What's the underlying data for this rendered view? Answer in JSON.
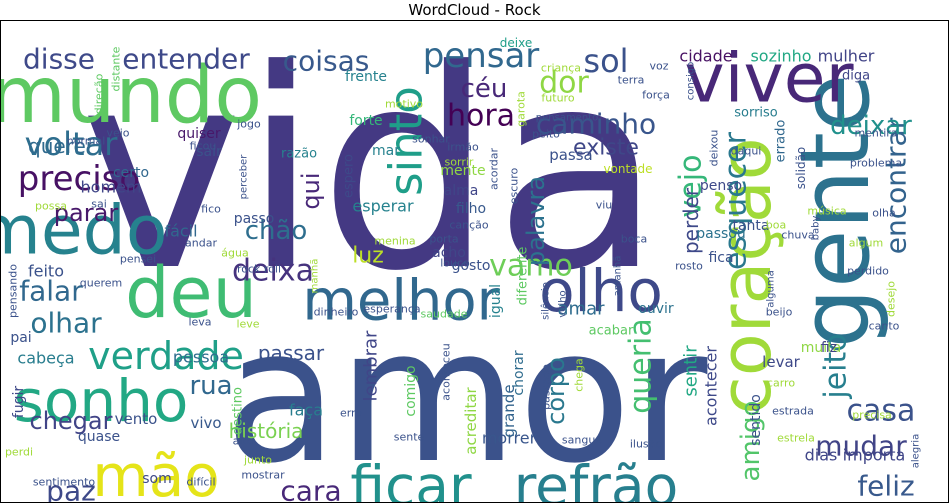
{
  "chart_data": {
    "type": "wordcloud",
    "title": "WordCloud - Rock",
    "words": [
      {
        "text": "vida",
        "weight": 1.0
      },
      {
        "text": "amor",
        "weight": 0.88
      },
      {
        "text": "gente",
        "weight": 0.44
      },
      {
        "text": "mundo",
        "weight": 0.38
      },
      {
        "text": "coração",
        "weight": 0.37
      },
      {
        "text": "viver",
        "weight": 0.35
      },
      {
        "text": "medo",
        "weight": 0.31
      },
      {
        "text": "deu",
        "weight": 0.3
      },
      {
        "text": "sonho",
        "weight": 0.28
      },
      {
        "text": "olho",
        "weight": 0.27
      },
      {
        "text": "melhor",
        "weight": 0.27
      },
      {
        "text": "ficar",
        "weight": 0.26
      },
      {
        "text": "refrão",
        "weight": 0.26
      },
      {
        "text": "mão",
        "weight": 0.25
      },
      {
        "text": "sinto",
        "weight": 0.22
      },
      {
        "text": "verdade",
        "weight": 0.19
      },
      {
        "text": "preciso",
        "weight": 0.18
      },
      {
        "text": "pensar",
        "weight": 0.16
      },
      {
        "text": "esquecer",
        "weight": 0.16
      },
      {
        "text": "encontrar",
        "weight": 0.16
      },
      {
        "text": "voltar",
        "weight": 0.15
      },
      {
        "text": "vamo",
        "weight": 0.15
      },
      {
        "text": "queria",
        "weight": 0.15
      },
      {
        "text": "jeito",
        "weight": 0.15
      },
      {
        "text": "coisas",
        "weight": 0.14
      },
      {
        "text": "hora",
        "weight": 0.14
      },
      {
        "text": "caminho",
        "weight": 0.14
      },
      {
        "text": "vejo",
        "weight": 0.14
      },
      {
        "text": "sol",
        "weight": 0.14
      },
      {
        "text": "falar",
        "weight": 0.14
      },
      {
        "text": "deixa",
        "weight": 0.14
      },
      {
        "text": "olhar",
        "weight": 0.14
      },
      {
        "text": "paz",
        "weight": 0.13
      },
      {
        "text": "cara",
        "weight": 0.13
      },
      {
        "text": "chegar",
        "weight": 0.13
      },
      {
        "text": "casa",
        "weight": 0.13
      },
      {
        "text": "mudar",
        "weight": 0.13
      },
      {
        "text": "feliz",
        "weight": 0.13
      },
      {
        "text": "amigo",
        "weight": 0.13
      },
      {
        "text": "disse",
        "weight": 0.12
      },
      {
        "text": "entender",
        "weight": 0.12
      },
      {
        "text": "dor",
        "weight": 0.12
      },
      {
        "text": "céu",
        "weight": 0.11
      },
      {
        "text": "deixar",
        "weight": 0.11
      },
      {
        "text": "parar",
        "weight": 0.1
      },
      {
        "text": "rua",
        "weight": 0.1
      },
      {
        "text": "chão",
        "weight": 0.1
      },
      {
        "text": "qui",
        "weight": 0.1
      },
      {
        "text": "palavra",
        "weight": 0.1
      },
      {
        "text": "corpo",
        "weight": 0.1
      },
      {
        "text": "existe",
        "weight": 0.09
      },
      {
        "text": "passar",
        "weight": 0.09
      },
      {
        "text": "querer",
        "weight": 0.09
      },
      {
        "text": "história",
        "weight": 0.09
      },
      {
        "text": "luz",
        "weight": 0.09
      },
      {
        "text": "perder",
        "weight": 0.09
      },
      {
        "text": "amar",
        "weight": 0.08
      },
      {
        "text": "lembrar",
        "weight": 0.08
      },
      {
        "text": "sentir",
        "weight": 0.08
      },
      {
        "text": "sozinho",
        "weight": 0.07
      },
      {
        "text": "cidade",
        "weight": 0.07
      },
      {
        "text": "mulher",
        "weight": 0.07
      },
      {
        "text": "passa",
        "weight": 0.07
      },
      {
        "text": "esperar",
        "weight": 0.07
      },
      {
        "text": "fácil",
        "weight": 0.07
      },
      {
        "text": "homem",
        "weight": 0.07
      },
      {
        "text": "feito",
        "weight": 0.07
      },
      {
        "text": "pessoa",
        "weight": 0.07
      },
      {
        "text": "cabeça",
        "weight": 0.07
      },
      {
        "text": "vento",
        "weight": 0.07
      },
      {
        "text": "vivo",
        "weight": 0.07
      },
      {
        "text": "acontecer",
        "weight": 0.07
      },
      {
        "text": "levar",
        "weight": 0.07
      },
      {
        "text": "muita",
        "weight": 0.07
      },
      {
        "text": "importa",
        "weight": 0.07
      },
      {
        "text": "dias",
        "weight": 0.07
      },
      {
        "text": "morrer",
        "weight": 0.07
      },
      {
        "text": "grande",
        "weight": 0.07
      },
      {
        "text": "acreditar",
        "weight": 0.07
      },
      {
        "text": "comigo",
        "weight": 0.07
      },
      {
        "text": "faça",
        "weight": 0.07
      },
      {
        "text": "som",
        "weight": 0.07
      },
      {
        "text": "fica",
        "weight": 0.07
      },
      {
        "text": "passou",
        "weight": 0.07
      },
      {
        "text": "tanta",
        "weight": 0.07
      },
      {
        "text": "penso",
        "weight": 0.07
      },
      {
        "text": "gosto",
        "weight": 0.07
      },
      {
        "text": "acho",
        "weight": 0.07
      },
      {
        "text": "igual",
        "weight": 0.07
      },
      {
        "text": "mente",
        "weight": 0.07
      },
      {
        "text": "alma",
        "weight": 0.07
      },
      {
        "text": "filho",
        "weight": 0.07
      },
      {
        "text": "quiser",
        "weight": 0.06
      },
      {
        "text": "sair",
        "weight": 0.06
      },
      {
        "text": "certo",
        "weight": 0.06
      },
      {
        "text": "forte",
        "weight": 0.06
      },
      {
        "text": "mar",
        "weight": 0.06
      },
      {
        "text": "sorriso",
        "weight": 0.06
      },
      {
        "text": "diga",
        "weight": 0.06
      },
      {
        "text": "deixe",
        "weight": 0.06
      },
      {
        "text": "vontade",
        "weight": 0.06
      },
      {
        "text": "frente",
        "weight": 0.06
      },
      {
        "text": "passo",
        "weight": 0.06
      },
      {
        "text": "pai",
        "weight": 0.06
      },
      {
        "text": "quase",
        "weight": 0.06
      },
      {
        "text": "ouvir",
        "weight": 0.06
      },
      {
        "text": "acabar",
        "weight": 0.06
      },
      {
        "text": "chorar",
        "weight": 0.06
      },
      {
        "text": "fiz",
        "weight": 0.06
      },
      {
        "text": "sentido",
        "weight": 0.06
      },
      {
        "text": "destino",
        "weight": 0.06
      },
      {
        "text": "fugir",
        "weight": 0.06
      },
      {
        "text": "razão",
        "weight": 0.05
      },
      {
        "text": "espero",
        "weight": 0.05
      },
      {
        "text": "errado",
        "weight": 0.05
      },
      {
        "text": "solidão",
        "weight": 0.05
      },
      {
        "text": "diferente",
        "weight": 0.05
      },
      {
        "text": "dinheiro",
        "weight": 0.05
      },
      {
        "text": "saudade",
        "weight": 0.05
      },
      {
        "text": "esperança",
        "weight": 0.05
      },
      {
        "text": "rock roll",
        "weight": 0.05
      },
      {
        "text": "canto",
        "weight": 0.04
      },
      {
        "text": "distante",
        "weight": 0.04
      },
      {
        "text": "direção",
        "weight": 0.04
      },
      {
        "text": "garota",
        "weight": 0.04
      },
      {
        "text": "terra",
        "weight": 0.04
      },
      {
        "text": "futuro",
        "weight": 0.04
      },
      {
        "text": "força",
        "weight": 0.04
      },
      {
        "text": "pensamento",
        "weight": 0.04
      },
      {
        "text": "criança",
        "weight": 0.04
      },
      {
        "text": "voz",
        "weight": 0.04
      },
      {
        "text": "consigo",
        "weight": 0.04
      },
      {
        "text": "motivo",
        "weight": 0.04
      },
      {
        "text": "peito",
        "weight": 0.04
      },
      {
        "text": "mentira",
        "weight": 0.04
      },
      {
        "text": "normal",
        "weight": 0.04
      },
      {
        "text": "veio",
        "weight": 0.04
      },
      {
        "text": "jogo",
        "weight": 0.04
      },
      {
        "text": "sonhar",
        "weight": 0.04
      },
      {
        "text": "irmão",
        "weight": 0.04
      },
      {
        "text": "ficou",
        "weight": 0.04
      },
      {
        "text": "deixou",
        "weight": 0.04
      },
      {
        "text": "daqui",
        "weight": 0.04
      },
      {
        "text": "sorrir",
        "weight": 0.04
      },
      {
        "text": "acordar",
        "weight": 0.04
      },
      {
        "text": "escuro",
        "weight": 0.04
      },
      {
        "text": "perceber",
        "weight": 0.04
      },
      {
        "text": "problema",
        "weight": 0.04
      },
      {
        "text": "possa",
        "weight": 0.04
      },
      {
        "text": "sai",
        "weight": 0.04
      },
      {
        "text": "fico",
        "weight": 0.04
      },
      {
        "text": "canção",
        "weight": 0.04
      },
      {
        "text": "viu",
        "weight": 0.04
      },
      {
        "text": "porta",
        "weight": 0.04
      },
      {
        "text": "chuva",
        "weight": 0.04
      },
      {
        "text": "boa",
        "weight": 0.04
      },
      {
        "text": "música",
        "weight": 0.04
      },
      {
        "text": "baby",
        "weight": 0.04
      },
      {
        "text": "olha",
        "weight": 0.04
      },
      {
        "text": "algum",
        "weight": 0.04
      },
      {
        "text": "andar",
        "weight": 0.04
      },
      {
        "text": "menina",
        "weight": 0.04
      },
      {
        "text": "boca",
        "weight": 0.04
      },
      {
        "text": "água",
        "weight": 0.04
      },
      {
        "text": "pensei",
        "weight": 0.04
      },
      {
        "text": "louco",
        "weight": 0.04
      },
      {
        "text": "rosto",
        "weight": 0.04
      },
      {
        "text": "amanhã",
        "weight": 0.04
      },
      {
        "text": "alguma",
        "weight": 0.04
      },
      {
        "text": "perdido",
        "weight": 0.04
      },
      {
        "text": "querem",
        "weight": 0.04
      },
      {
        "text": "pensando",
        "weight": 0.04
      },
      {
        "text": "manhã",
        "weight": 0.04
      },
      {
        "text": "silêncio",
        "weight": 0.04
      },
      {
        "text": "velho",
        "weight": 0.04
      },
      {
        "text": "desejo",
        "weight": 0.04
      },
      {
        "text": "leva",
        "weight": 0.04
      },
      {
        "text": "leve",
        "weight": 0.04
      },
      {
        "text": "beijo",
        "weight": 0.04
      },
      {
        "text": "aconteceu",
        "weight": 0.04
      },
      {
        "text": "carro",
        "weight": 0.04
      },
      {
        "text": "passado",
        "weight": 0.04
      },
      {
        "text": "chega",
        "weight": 0.04
      },
      {
        "text": "estrada",
        "weight": 0.04
      },
      {
        "text": "precisa",
        "weight": 0.04
      },
      {
        "text": "erro",
        "weight": 0.04
      },
      {
        "text": "alto",
        "weight": 0.04
      },
      {
        "text": "sente",
        "weight": 0.04
      },
      {
        "text": "sangue",
        "weight": 0.04
      },
      {
        "text": "ilusão",
        "weight": 0.04
      },
      {
        "text": "estrela",
        "weight": 0.04
      },
      {
        "text": "alegria",
        "weight": 0.04
      },
      {
        "text": "perdi",
        "weight": 0.04
      },
      {
        "text": "junto",
        "weight": 0.04
      },
      {
        "text": "sentimento",
        "weight": 0.04
      },
      {
        "text": "difícil",
        "weight": 0.04
      },
      {
        "text": "mostrar",
        "weight": 0.04
      }
    ]
  }
}
